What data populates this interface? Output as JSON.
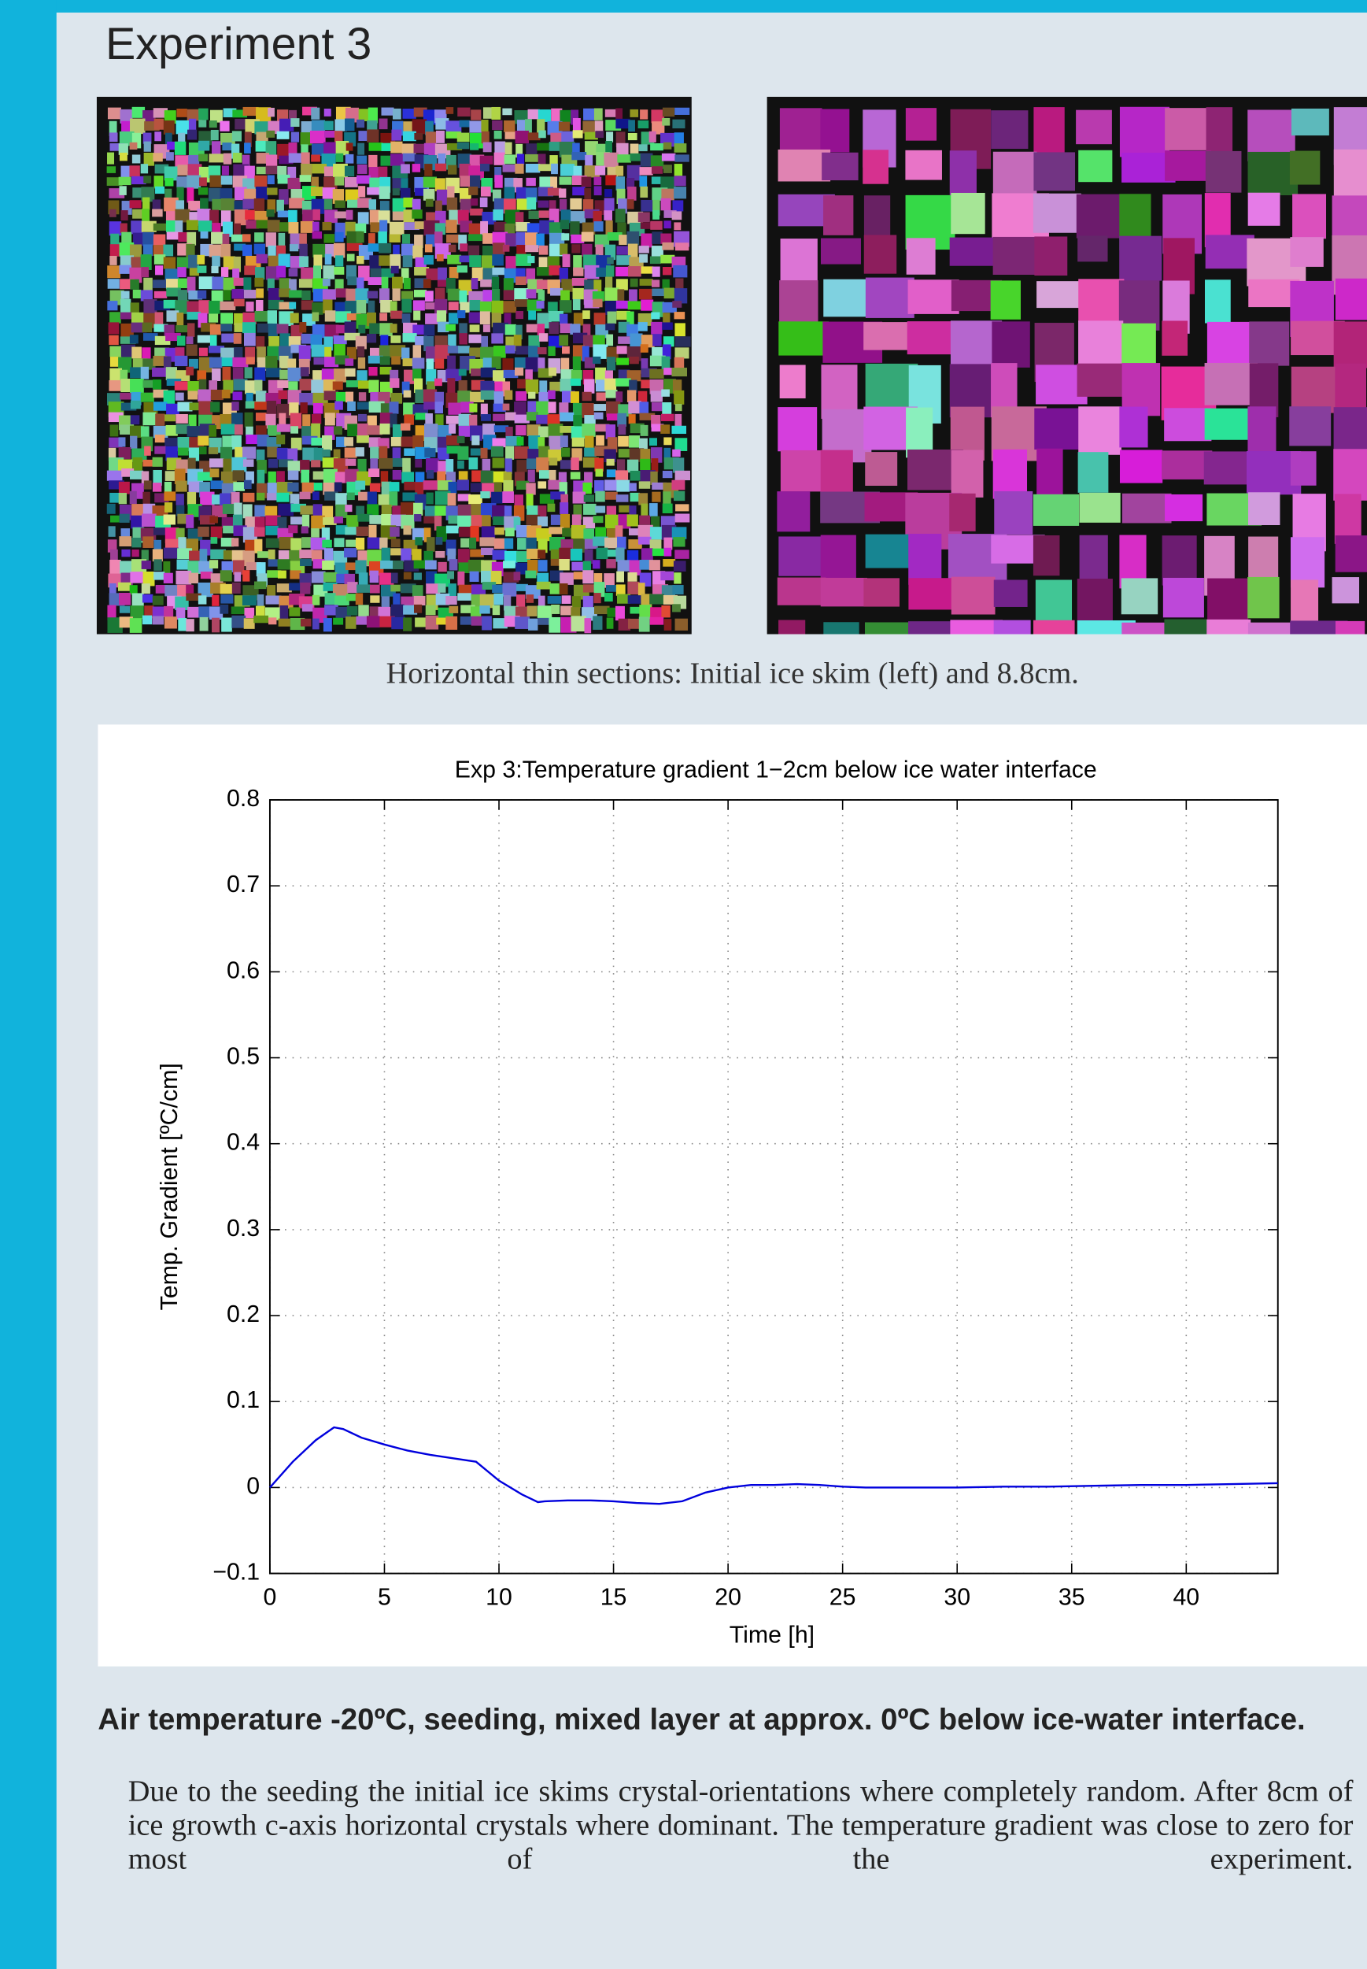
{
  "header": {
    "title": "Experiment 3"
  },
  "figure": {
    "caption": "Horizontal thin sections: Initial ice skim (left) and 8.8cm."
  },
  "chart_data": {
    "type": "line",
    "title": "Exp 3:Temperature gradient 1−2cm below ice water interface",
    "x_label": "Time [h]",
    "y_label": "Temp. Gradient [ºC/cm]",
    "xlim": [
      0,
      44
    ],
    "ylim": [
      -0.1,
      0.8
    ],
    "xticks": [
      0,
      5,
      10,
      15,
      20,
      25,
      30,
      35,
      40
    ],
    "yticks": [
      {
        "value": -0.1,
        "label": "−0.1"
      },
      0,
      0.1,
      0.2,
      0.3,
      0.4,
      0.5,
      0.6,
      0.7,
      0.8
    ],
    "grid": true,
    "series": [
      {
        "color": "#0000dd",
        "x": [
          0,
          1,
          2,
          2.8,
          3.2,
          4,
          5,
          6,
          7,
          8,
          9,
          10,
          11,
          11.7,
          12,
          13,
          14,
          15,
          16,
          17,
          18,
          19,
          20,
          21,
          22,
          23,
          24,
          25,
          26,
          28,
          30,
          32,
          34,
          36,
          38,
          40,
          42,
          44
        ],
        "values": [
          0,
          0.03,
          0.055,
          0.07,
          0.068,
          0.058,
          0.05,
          0.043,
          0.038,
          0.034,
          0.03,
          0.008,
          -0.008,
          -0.017,
          -0.016,
          -0.015,
          -0.015,
          -0.016,
          -0.018,
          -0.019,
          -0.016,
          -0.006,
          0,
          0.003,
          0.003,
          0.004,
          0.003,
          0.001,
          0,
          0,
          0,
          0.001,
          0.001,
          0.002,
          0.003,
          0.003,
          0.004,
          0.005
        ]
      }
    ]
  },
  "text": {
    "heading": "Air temperature -20ºC, seeding, mixed layer at approx. 0ºC below ice-water interface.",
    "body": "Due to the seeding the initial ice skims crystal-orientations where completely random. After 8cm of ice growth c-axis horizontal crystals where dominant. The temperature gradient was close to zero for most of the experiment."
  }
}
